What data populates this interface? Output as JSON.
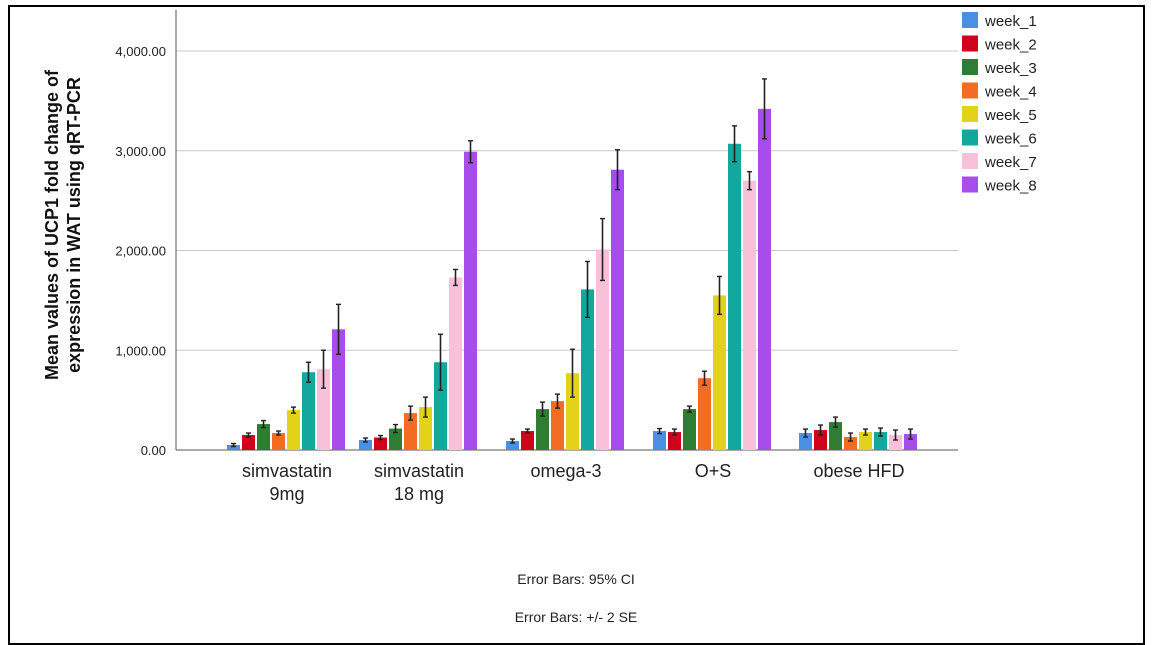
{
  "chart_data": {
    "type": "bar",
    "ylabel": [
      "Mean values of UCP1 fold change of",
      "expression in WAT using qRT-PCR"
    ],
    "ylim": [
      0,
      4000
    ],
    "yticks": [
      0,
      1000,
      2000,
      3000,
      4000
    ],
    "ytick_labels": [
      "0.00",
      "1,000.00",
      "2,000.00",
      "3,000.00",
      "4,000.00"
    ],
    "grid": true,
    "legend_position": "top-right",
    "categories": [
      [
        "simvastatin",
        "9mg"
      ],
      [
        "simvastatin",
        "18 mg"
      ],
      [
        "omega-3"
      ],
      [
        "O+S"
      ],
      [
        "obese HFD"
      ]
    ],
    "series": [
      {
        "name": "week_1",
        "color": "#4A90E2",
        "values": [
          50,
          100,
          90,
          190,
          170
        ],
        "err": [
          15,
          20,
          20,
          25,
          40
        ]
      },
      {
        "name": "week_2",
        "color": "#D0021B",
        "values": [
          150,
          125,
          190,
          180,
          200
        ],
        "err": [
          20,
          20,
          20,
          30,
          50
        ]
      },
      {
        "name": "week_3",
        "color": "#2E7D32",
        "values": [
          260,
          215,
          410,
          410,
          280
        ],
        "err": [
          35,
          40,
          70,
          30,
          50
        ]
      },
      {
        "name": "week_4",
        "color": "#F26D21",
        "values": [
          170,
          370,
          490,
          720,
          130
        ],
        "err": [
          20,
          70,
          70,
          70,
          40
        ]
      },
      {
        "name": "week_5",
        "color": "#E3D21A",
        "values": [
          400,
          430,
          770,
          1550,
          180
        ],
        "err": [
          30,
          100,
          240,
          190,
          30
        ]
      },
      {
        "name": "week_6",
        "color": "#13A89E",
        "values": [
          780,
          880,
          1610,
          3070,
          180
        ],
        "err": [
          100,
          280,
          280,
          180,
          40
        ]
      },
      {
        "name": "week_7",
        "color": "#F9C1D9",
        "values": [
          810,
          1730,
          2010,
          2700,
          150
        ],
        "err": [
          190,
          80,
          310,
          90,
          50
        ]
      },
      {
        "name": "week_8",
        "color": "#A64DEB",
        "values": [
          1210,
          2990,
          2810,
          3420,
          160
        ],
        "err": [
          250,
          110,
          200,
          300,
          50
        ]
      }
    ]
  },
  "footnotes": {
    "line1": "Error Bars: 95% CI",
    "line2": "Error Bars: +/- 2 SE"
  }
}
